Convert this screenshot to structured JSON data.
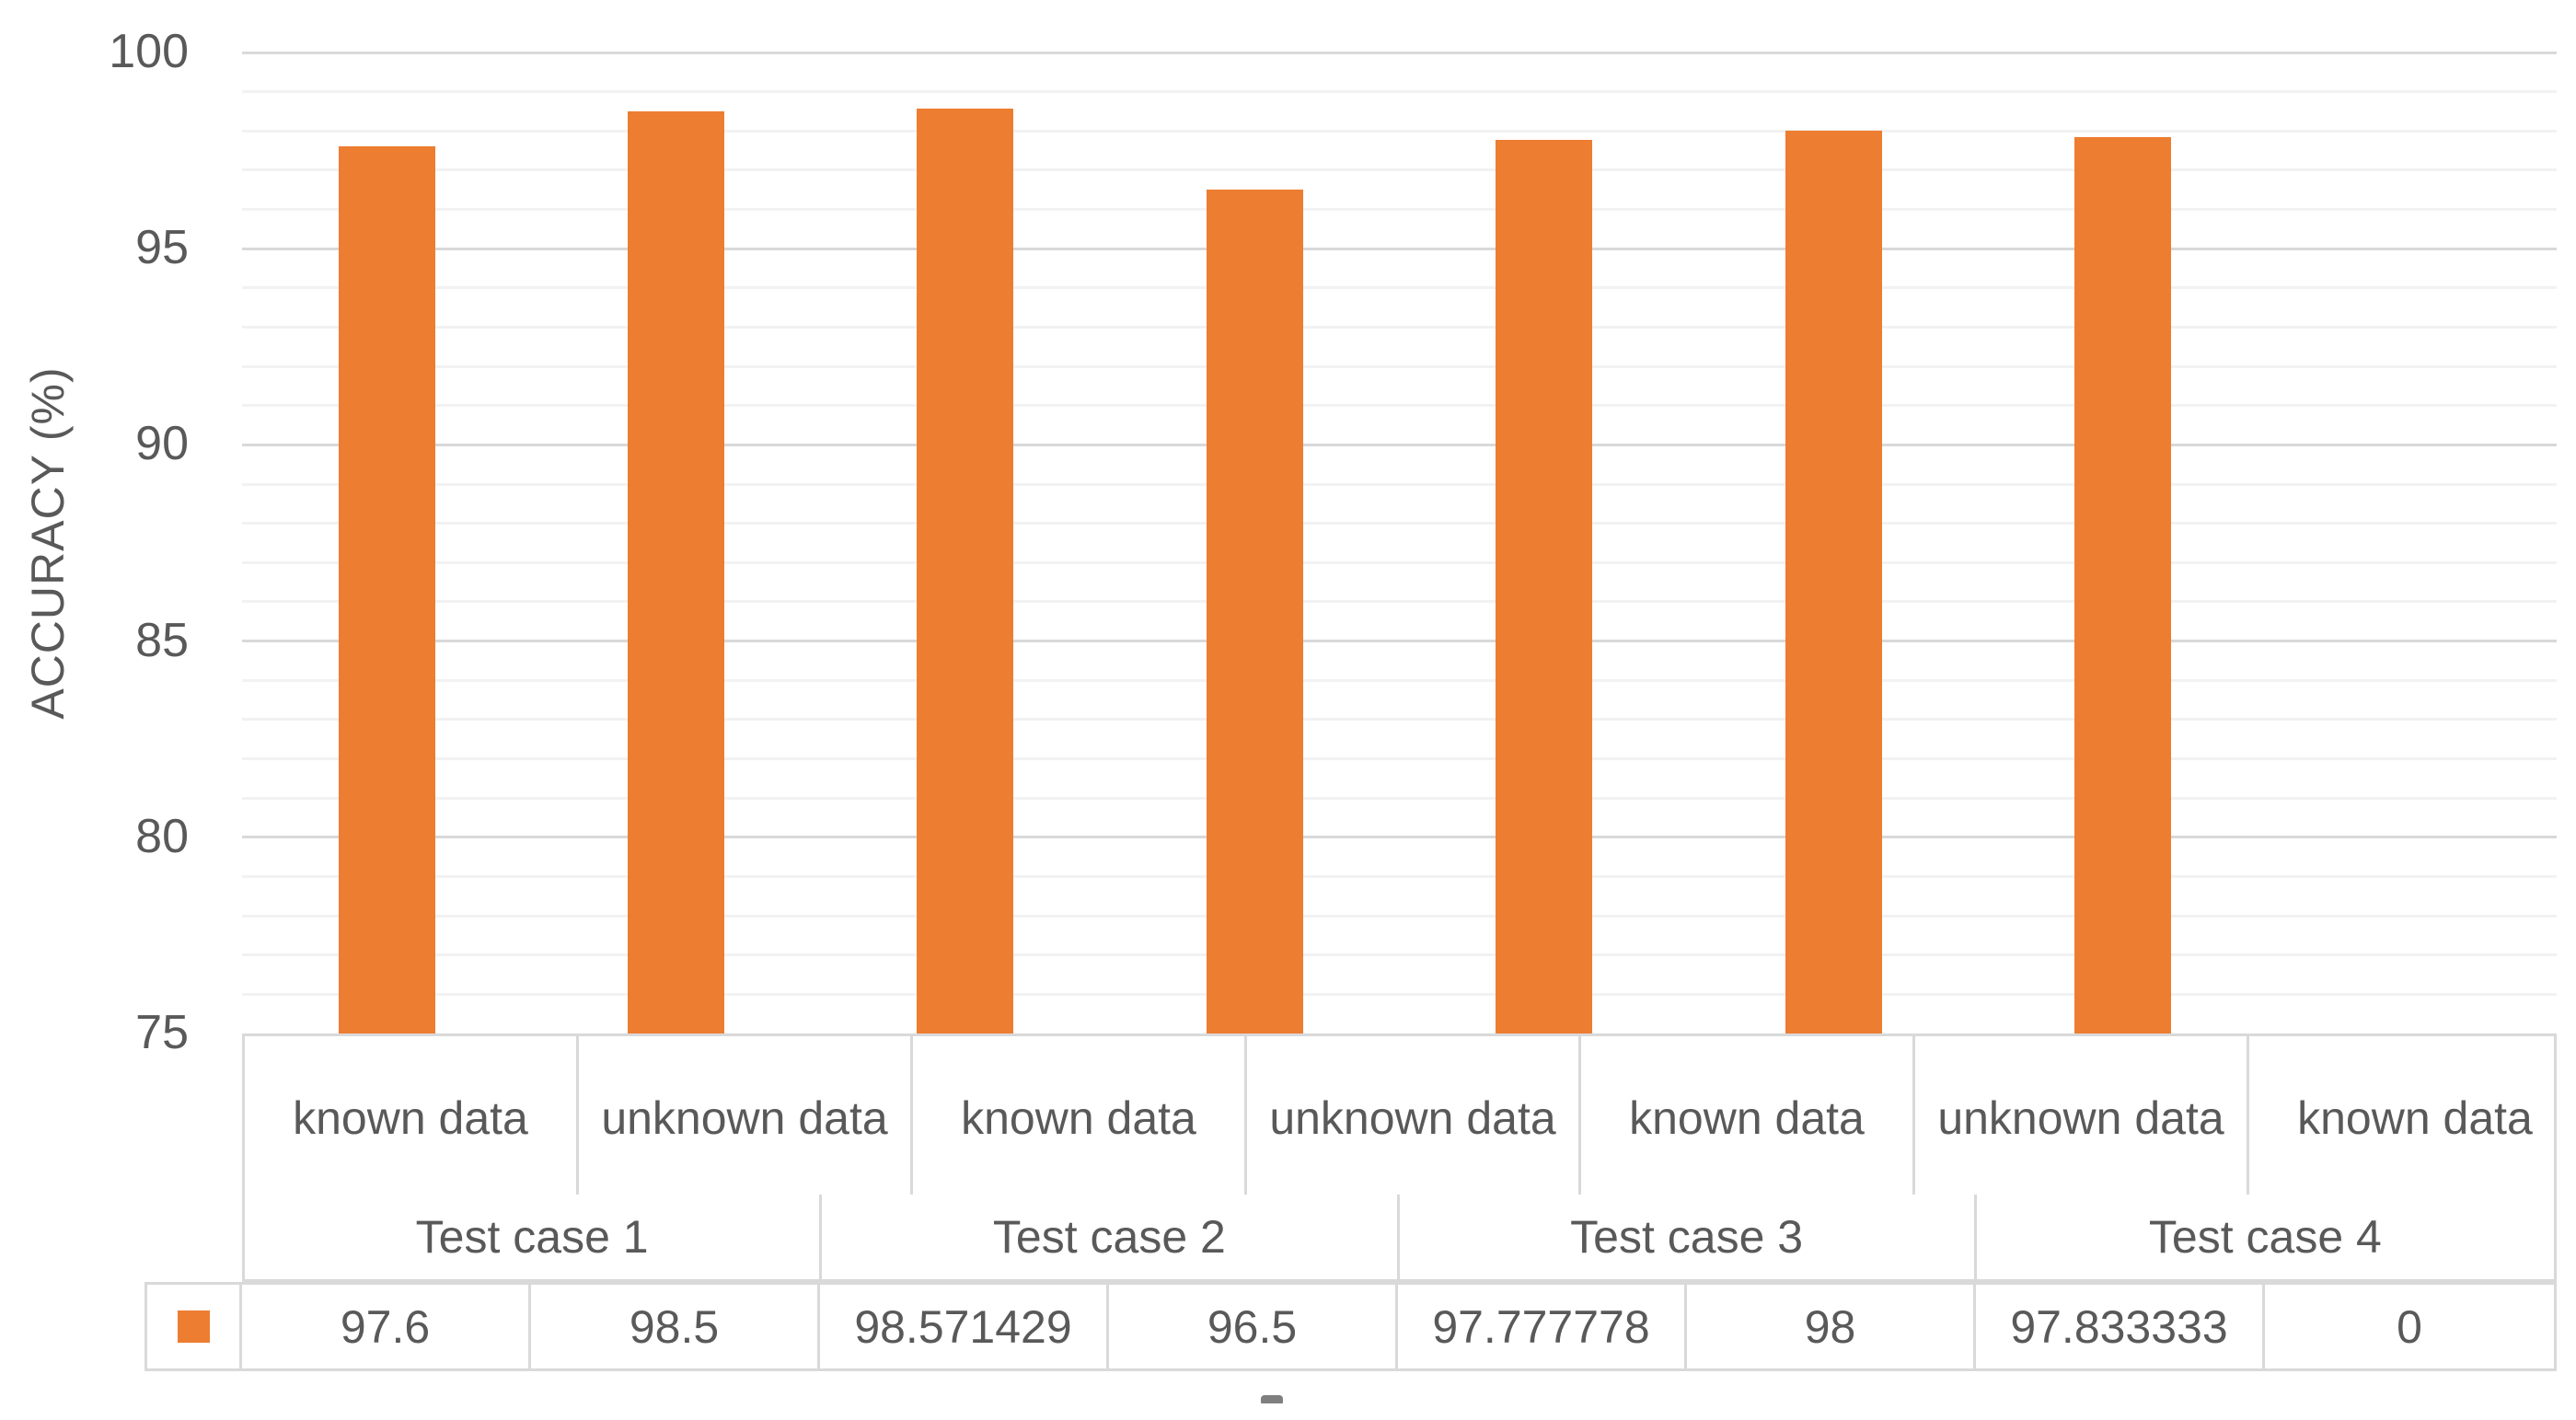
{
  "chart_data": {
    "type": "bar",
    "title": "",
    "ylabel": "ACCURACY (%)",
    "xlabel": "",
    "ylim": [
      75,
      100
    ],
    "yticks": [
      100,
      95,
      90,
      85,
      80,
      75
    ],
    "y_minor_step": 1,
    "y_major_step": 5,
    "grid": "on",
    "legend_position": "data-table-left",
    "groups": [
      "Test case 1",
      "Test case 2",
      "Test case 3",
      "Test case 4"
    ],
    "categories": [
      "known data",
      "unknown data",
      "known data",
      "unknown data",
      "known data",
      "unknown data",
      "known data",
      "unknown data"
    ],
    "series": [
      {
        "name": "",
        "values": [
          97.6,
          98.5,
          98.571429,
          96.5,
          97.777778,
          98,
          97.833333,
          0
        ],
        "value_labels": [
          "97.6",
          "98.5",
          "98.571429",
          "96.5",
          "97.777778",
          "98",
          "97.833333",
          "0"
        ]
      }
    ],
    "bar_color": "#ED7D31"
  },
  "colors": {
    "bar": "#ED7D31",
    "text": "#595959",
    "major_gridline": "#D9D9D9",
    "minor_gridline": "#F2F2F2",
    "table_border": "#D9D9D9",
    "background": "#FFFFFF"
  }
}
